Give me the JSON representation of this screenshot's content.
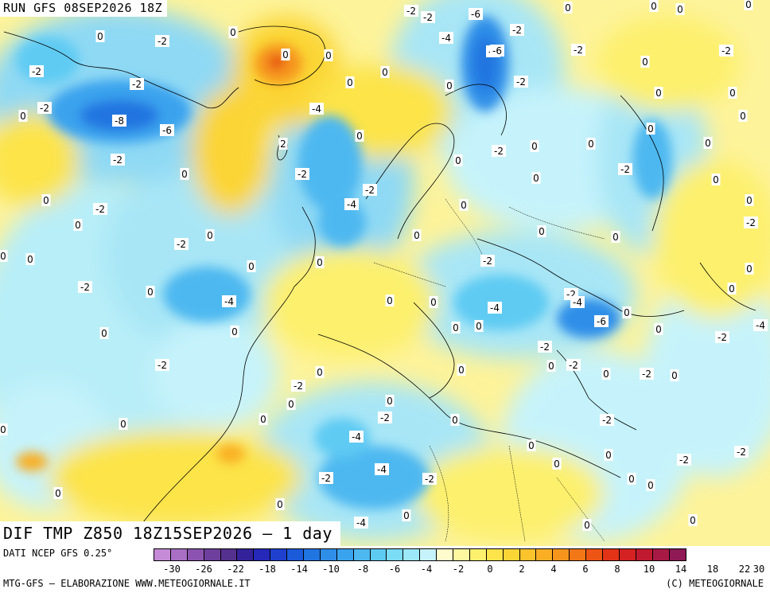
{
  "header": {
    "run_label": "RUN GFS 08SEP2026 18Z"
  },
  "title": "DIF TMP Z850 18Z15SEP2026 – 1 day",
  "footer": {
    "data_source": "DATI NCEP GFS 0.25°",
    "credits": "MTG-GFS – ELABORAZIONE WWW.METEOGIORNALE.IT",
    "copyright": "(C) METEOGIORNALE"
  },
  "colorbar": {
    "colors": [
      "#c58bd6",
      "#a86fc4",
      "#8c54b0",
      "#6f3f9e",
      "#55318f",
      "#34229a",
      "#2528b8",
      "#1f40cf",
      "#1b5ad9",
      "#2075e0",
      "#2e8ee8",
      "#3aa3ee",
      "#4db8f0",
      "#5ecbf3",
      "#7bdcf6",
      "#9ce8f8",
      "#c6f3fb",
      "#fefccc",
      "#fdf8a0",
      "#fdf06d",
      "#fce44a",
      "#fbd536",
      "#fbc32c",
      "#f9ae24",
      "#f6951c",
      "#f27717",
      "#ec5514",
      "#e33317",
      "#d42222",
      "#c01a30",
      "#a81a45",
      "#8f1a55"
    ],
    "tick_labels": [
      "-30",
      "-26",
      "-22",
      "-18",
      "-14",
      "-10",
      "-8",
      "-6",
      "-4",
      "-2",
      "0",
      "2",
      "4",
      "6",
      "8",
      "10",
      "14",
      "18",
      "22",
      "30"
    ]
  },
  "map_labels": [
    "0",
    "-2",
    "-2",
    "-2",
    "-6",
    "0",
    "0",
    "0",
    "0",
    "0",
    "-2",
    "0",
    "-2",
    "2",
    "-4",
    "-8",
    "-2",
    "0",
    "0",
    "-2",
    "-2",
    "0",
    "-2",
    "-2",
    "-4",
    "-6",
    "-2",
    "-4",
    "0",
    "0",
    "-2",
    "-2",
    "0",
    "-4",
    "-4",
    "-8",
    "0",
    "-6",
    "0",
    "-2",
    "-2",
    "-2",
    "0",
    "0",
    "0",
    "0",
    "0",
    "0",
    "0",
    "0",
    "0",
    "0",
    "-2",
    "0",
    "0",
    "-2",
    "0",
    "0",
    "-2",
    "0",
    "-2",
    "0",
    "0",
    "0",
    "0",
    "-2",
    "0",
    "0",
    "-4",
    "-4",
    "-2",
    "0",
    "0",
    "0",
    "-2",
    "0",
    "-2",
    "-2",
    "0",
    "0",
    "-4",
    "-2",
    "-6",
    "0",
    "0",
    "0",
    "0",
    "0",
    "0",
    "-2",
    "-2",
    "-4",
    "0",
    "0",
    "0",
    "-2",
    "0",
    "0",
    "0",
    "0",
    "0",
    "-2",
    "0",
    "0",
    "-4",
    "-2",
    "0",
    "-2",
    "0",
    "0",
    "0",
    "0",
    "0",
    "0",
    "0",
    "0",
    "0",
    "0",
    "-2"
  ]
}
